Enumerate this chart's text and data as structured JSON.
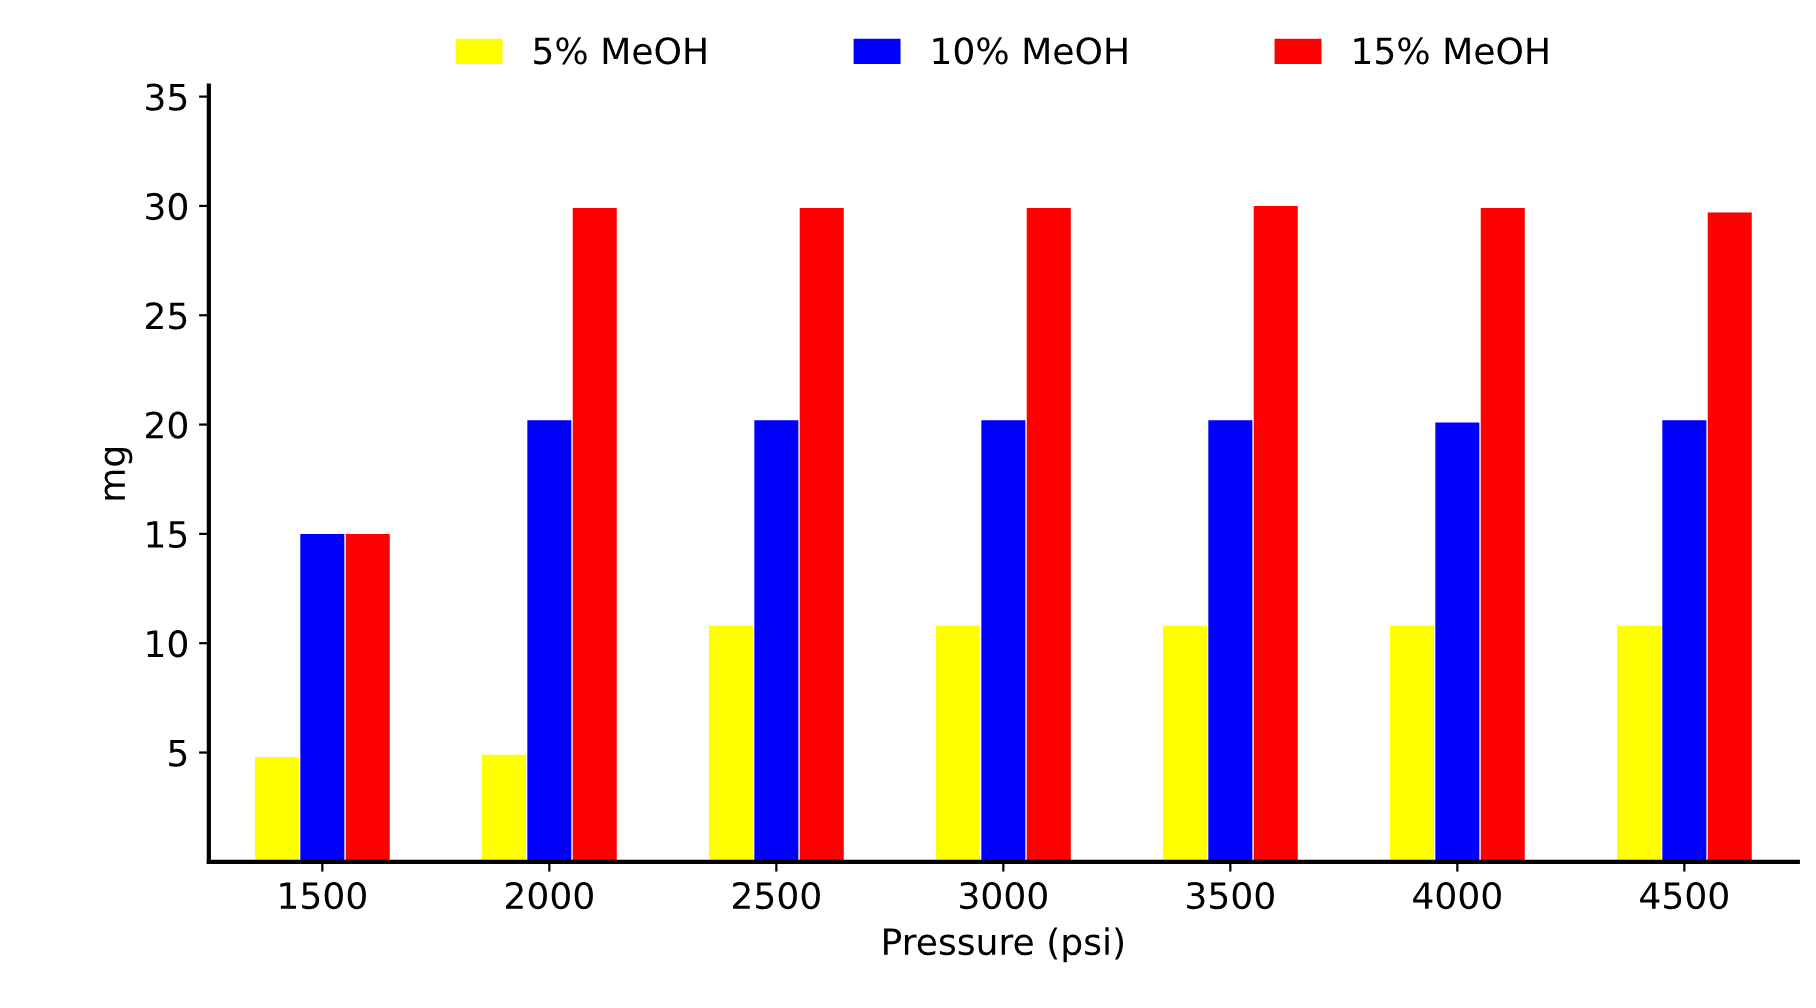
{
  "chart_data": {
    "type": "bar",
    "xlabel": "Pressure (psi)",
    "ylabel": "mg",
    "categories": [
      "1500",
      "2000",
      "2500",
      "3000",
      "3500",
      "4000",
      "4500"
    ],
    "series": [
      {
        "name": "5% MeOH",
        "color": "#ffff00",
        "values": [
          4.8,
          4.9,
          10.8,
          10.8,
          10.8,
          10.8,
          10.8
        ]
      },
      {
        "name": "10% MeOH",
        "color": "#0000ff",
        "values": [
          15,
          20.2,
          20.2,
          20.2,
          20.2,
          20.1,
          20.2
        ]
      },
      {
        "name": "15% MeOH",
        "color": "#ff0000",
        "values": [
          15,
          29.9,
          29.9,
          29.9,
          30,
          29.9,
          29.7
        ]
      }
    ],
    "ylim": [
      0,
      35.5
    ],
    "yticks": [
      5,
      10,
      15,
      20,
      25,
      30,
      35
    ],
    "grid": false,
    "legend": "top"
  }
}
